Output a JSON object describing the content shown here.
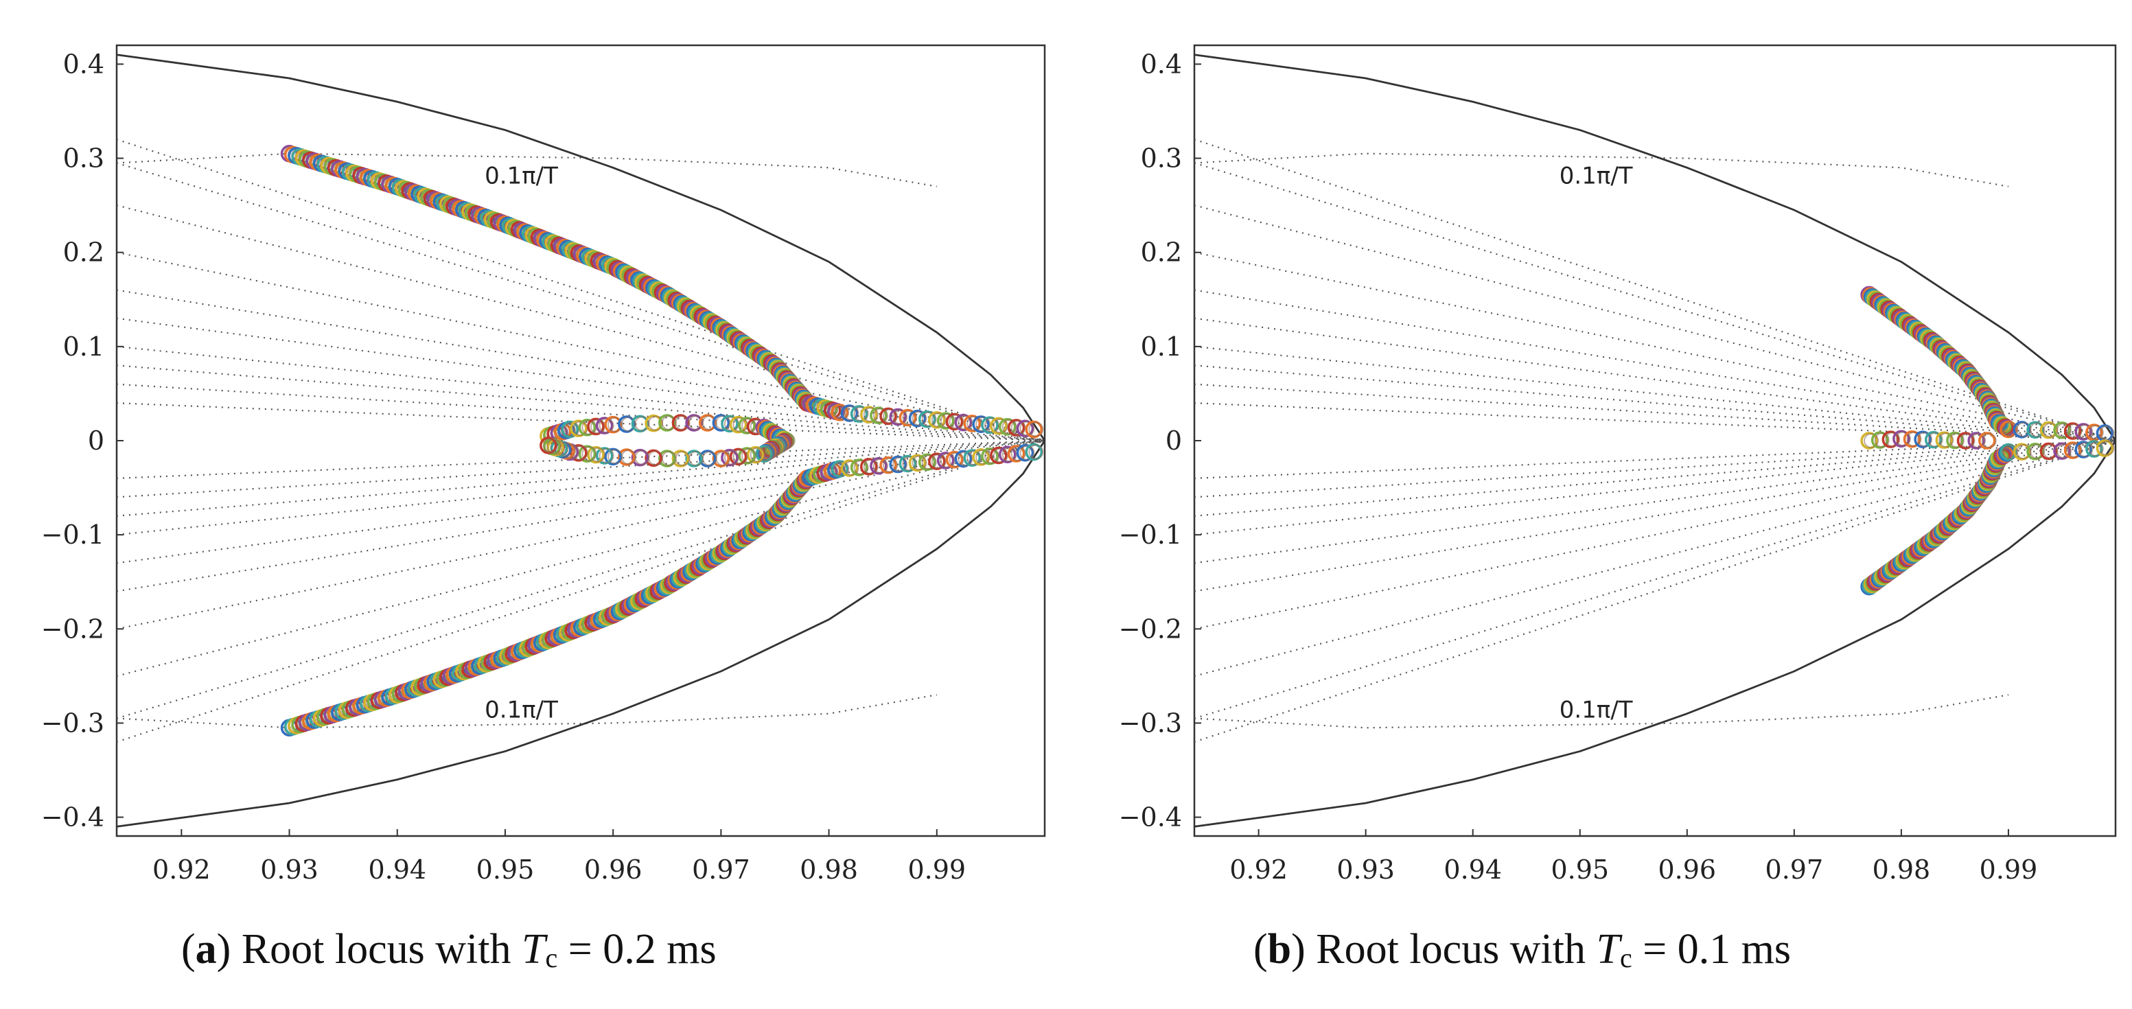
{
  "chart_data": [
    {
      "type": "scatter",
      "panel": "a",
      "caption": {
        "letter": "a",
        "prefix": "Root locus with",
        "symbol": "T",
        "subscript": "c",
        "suffix": "= 0.2 ms"
      },
      "xlim": [
        0.914,
        1.0
      ],
      "ylim": [
        -0.42,
        0.42
      ],
      "xticks": [
        0.92,
        0.93,
        0.94,
        0.95,
        0.96,
        0.97,
        0.98,
        0.99
      ],
      "xtick_labels": [
        "0.92",
        "0.93",
        "0.94",
        "0.95",
        "0.96",
        "0.97",
        "0.98",
        "0.99"
      ],
      "yticks": [
        0.4,
        0.3,
        0.2,
        0.1,
        0,
        -0.1,
        -0.2,
        -0.3,
        -0.4
      ],
      "ytick_labels": [
        "0.4",
        "0.3",
        "0.2",
        "0.1",
        "0",
        "−0.1",
        "−0.2",
        "−0.3",
        "−0.4"
      ],
      "annotations": [
        "0.1π/T",
        "0.1π/T"
      ],
      "boundary": [
        [
          0.914,
          0.41
        ],
        [
          0.93,
          0.385
        ],
        [
          0.94,
          0.36
        ],
        [
          0.95,
          0.33
        ],
        [
          0.96,
          0.29
        ],
        [
          0.97,
          0.245
        ],
        [
          0.98,
          0.19
        ],
        [
          0.99,
          0.115
        ],
        [
          0.995,
          0.07
        ],
        [
          0.998,
          0.035
        ],
        [
          1.0,
          0.0
        ]
      ],
      "series": [
        {
          "values": [
            [
              0.93,
              0.305
            ],
            [
              0.94,
              0.27
            ],
            [
              0.95,
              0.23
            ],
            [
              0.96,
              0.185
            ],
            [
              0.965,
              0.155
            ],
            [
              0.97,
              0.12
            ],
            [
              0.975,
              0.08
            ],
            [
              0.978,
              0.04
            ],
            [
              0.981,
              0.03
            ],
            [
              0.99,
              0.022
            ],
            [
              0.999,
              0.012
            ]
          ]
        },
        {
          "values": [
            [
              0.93,
              -0.305
            ],
            [
              0.94,
              -0.27
            ],
            [
              0.95,
              -0.23
            ],
            [
              0.96,
              -0.185
            ],
            [
              0.965,
              -0.155
            ],
            [
              0.97,
              -0.12
            ],
            [
              0.975,
              -0.08
            ],
            [
              0.978,
              -0.04
            ],
            [
              0.981,
              -0.03
            ],
            [
              0.99,
              -0.022
            ],
            [
              0.999,
              -0.012
            ]
          ]
        },
        {
          "values": [
            [
              0.954,
              0.005
            ],
            [
              0.956,
              0.012
            ],
            [
              0.96,
              0.017
            ],
            [
              0.965,
              0.019
            ],
            [
              0.97,
              0.019
            ],
            [
              0.974,
              0.014
            ],
            [
              0.976,
              0.0
            ],
            [
              0.974,
              -0.014
            ],
            [
              0.97,
              -0.019
            ],
            [
              0.965,
              -0.019
            ],
            [
              0.96,
              -0.017
            ],
            [
              0.956,
              -0.012
            ],
            [
              0.954,
              -0.005
            ]
          ]
        }
      ]
    },
    {
      "type": "scatter",
      "panel": "b",
      "caption": {
        "letter": "b",
        "prefix": "Root locus with",
        "symbol": "T",
        "subscript": "c",
        "suffix": "= 0.1 ms"
      },
      "xlim": [
        0.914,
        1.0
      ],
      "ylim": [
        -0.42,
        0.42
      ],
      "xticks": [
        0.92,
        0.93,
        0.94,
        0.95,
        0.96,
        0.97,
        0.98,
        0.99
      ],
      "xtick_labels": [
        "0.92",
        "0.93",
        "0.94",
        "0.95",
        "0.96",
        "0.97",
        "0.98",
        "0.99"
      ],
      "yticks": [
        0.4,
        0.3,
        0.2,
        0.1,
        0,
        -0.1,
        -0.2,
        -0.3,
        -0.4
      ],
      "ytick_labels": [
        "0.4",
        "0.3",
        "0.2",
        "0.1",
        "0",
        "−0.1",
        "−0.2",
        "−0.3",
        "−0.4"
      ],
      "annotations": [
        "0.1π/T",
        "0.1π/T"
      ],
      "boundary": [
        [
          0.914,
          0.41
        ],
        [
          0.93,
          0.385
        ],
        [
          0.94,
          0.36
        ],
        [
          0.95,
          0.33
        ],
        [
          0.96,
          0.29
        ],
        [
          0.97,
          0.245
        ],
        [
          0.98,
          0.19
        ],
        [
          0.99,
          0.115
        ],
        [
          0.995,
          0.07
        ],
        [
          0.998,
          0.035
        ],
        [
          1.0,
          0.0
        ]
      ],
      "series": [
        {
          "values": [
            [
              0.977,
              0.155
            ],
            [
              0.98,
              0.13
            ],
            [
              0.983,
              0.105
            ],
            [
              0.986,
              0.075
            ],
            [
              0.988,
              0.045
            ],
            [
              0.989,
              0.02
            ],
            [
              0.99,
              0.012
            ],
            [
              0.995,
              0.011
            ],
            [
              0.999,
              0.008
            ]
          ]
        },
        {
          "values": [
            [
              0.977,
              -0.155
            ],
            [
              0.98,
              -0.13
            ],
            [
              0.983,
              -0.105
            ],
            [
              0.986,
              -0.075
            ],
            [
              0.988,
              -0.045
            ],
            [
              0.989,
              -0.02
            ],
            [
              0.99,
              -0.012
            ],
            [
              0.995,
              -0.011
            ],
            [
              0.999,
              -0.008
            ]
          ]
        },
        {
          "values": [
            [
              0.977,
              0.0
            ],
            [
              0.98,
              0.002
            ],
            [
              0.983,
              0.001
            ],
            [
              0.986,
              0.0
            ],
            [
              0.988,
              0.0
            ]
          ]
        }
      ]
    }
  ]
}
